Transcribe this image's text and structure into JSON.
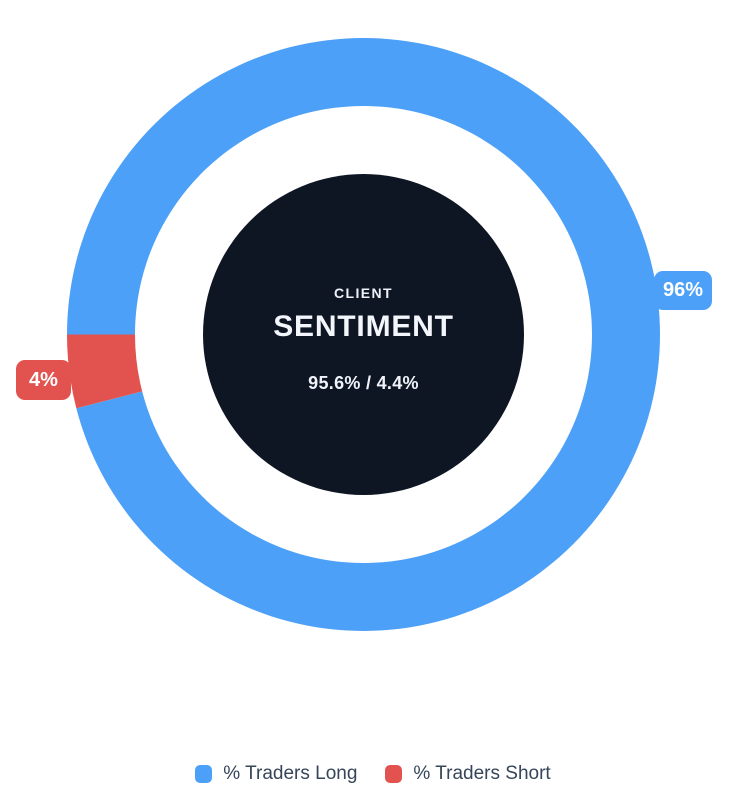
{
  "chart_data": {
    "type": "pie",
    "subtype": "doughnut",
    "labels": [
      "% Traders Long",
      "% Traders Short"
    ],
    "values": [
      96,
      4
    ],
    "precise_values": [
      95.6,
      4.4
    ],
    "colors": [
      "#4DA0F8",
      "#E2534F"
    ],
    "start_angle_deg_clockwise_from_top": 270,
    "legend_position": "bottom",
    "callout_labels": [
      "96%",
      "4%"
    ],
    "center_text": {
      "line1": "CLIENT",
      "line2": "SENTIMENT",
      "line3": "95.6% / 4.4%"
    }
  },
  "center": {
    "line1": "CLIENT",
    "line2": "SENTIMENT",
    "line3": "95.6% / 4.4%"
  },
  "badges": {
    "long": "96%",
    "short": "4%"
  },
  "legend": {
    "items": [
      {
        "label": "% Traders Long",
        "color": "#4DA0F8"
      },
      {
        "label": "% Traders Short",
        "color": "#E2534F"
      }
    ]
  },
  "colors": {
    "long": "#4DA0F8",
    "short": "#E2534F",
    "center_bg": "#0E1523",
    "center_text": "#F1F5FA",
    "legend_text": "#36455A",
    "badge_text": "#FFFFFF"
  }
}
